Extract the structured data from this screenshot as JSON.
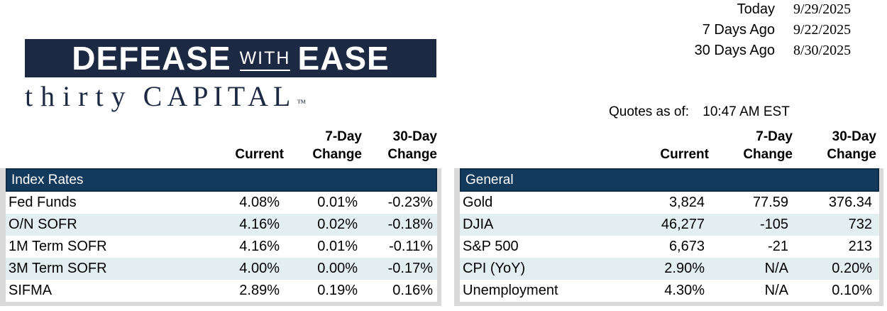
{
  "dates_panel": {
    "rows": [
      {
        "label": "Today",
        "date": "9/29/2025"
      },
      {
        "label": "7 Days Ago",
        "date": "9/22/2025"
      },
      {
        "label": "30 Days Ago",
        "date": "8/30/2025"
      }
    ]
  },
  "logo": {
    "word1": "DEFEASE",
    "word2": "WITH",
    "word3": "EASE",
    "sub_word1": "thirty",
    "sub_word2": "CAPITAL",
    "trademark": "™"
  },
  "quotes": {
    "label": "Quotes as of:",
    "time": "10:47 AM EST"
  },
  "columns": {
    "current": "Current",
    "d7": "7-Day",
    "d30": "30-Day",
    "change": "Change"
  },
  "tables": [
    {
      "section": "Index Rates",
      "rows": [
        {
          "label": "Fed Funds",
          "current": "4.08%",
          "d7": "0.01%",
          "d30": "-0.23%"
        },
        {
          "label": "O/N SOFR",
          "current": "4.16%",
          "d7": "0.02%",
          "d30": "-0.18%"
        },
        {
          "label": "1M Term SOFR",
          "current": "4.16%",
          "d7": "0.01%",
          "d30": "-0.11%"
        },
        {
          "label": "3M Term SOFR",
          "current": "4.00%",
          "d7": "0.00%",
          "d30": "-0.17%"
        },
        {
          "label": "SIFMA",
          "current": "2.89%",
          "d7": "0.19%",
          "d30": "0.16%"
        }
      ]
    },
    {
      "section": "General",
      "rows": [
        {
          "label": "Gold",
          "current": "3,824",
          "d7": "77.59",
          "d30": "376.34"
        },
        {
          "label": "DJIA",
          "current": "46,277",
          "d7": "-105",
          "d30": "732"
        },
        {
          "label": "S&P 500",
          "current": "6,673",
          "d7": "-21",
          "d30": "213"
        },
        {
          "label": "CPI (YoY)",
          "current": "2.90%",
          "d7": "N/A",
          "d30": "0.20%"
        },
        {
          "label": "Unemployment",
          "current": "4.30%",
          "d7": "N/A",
          "d30": "0.10%"
        }
      ]
    }
  ],
  "colors": {
    "band": "#133a5c",
    "band-edge": "#0e2c46",
    "logo": "#1d2942",
    "stripe": "#e2eef0",
    "shadow": "#d9d9d9",
    "ink": "#000000"
  }
}
